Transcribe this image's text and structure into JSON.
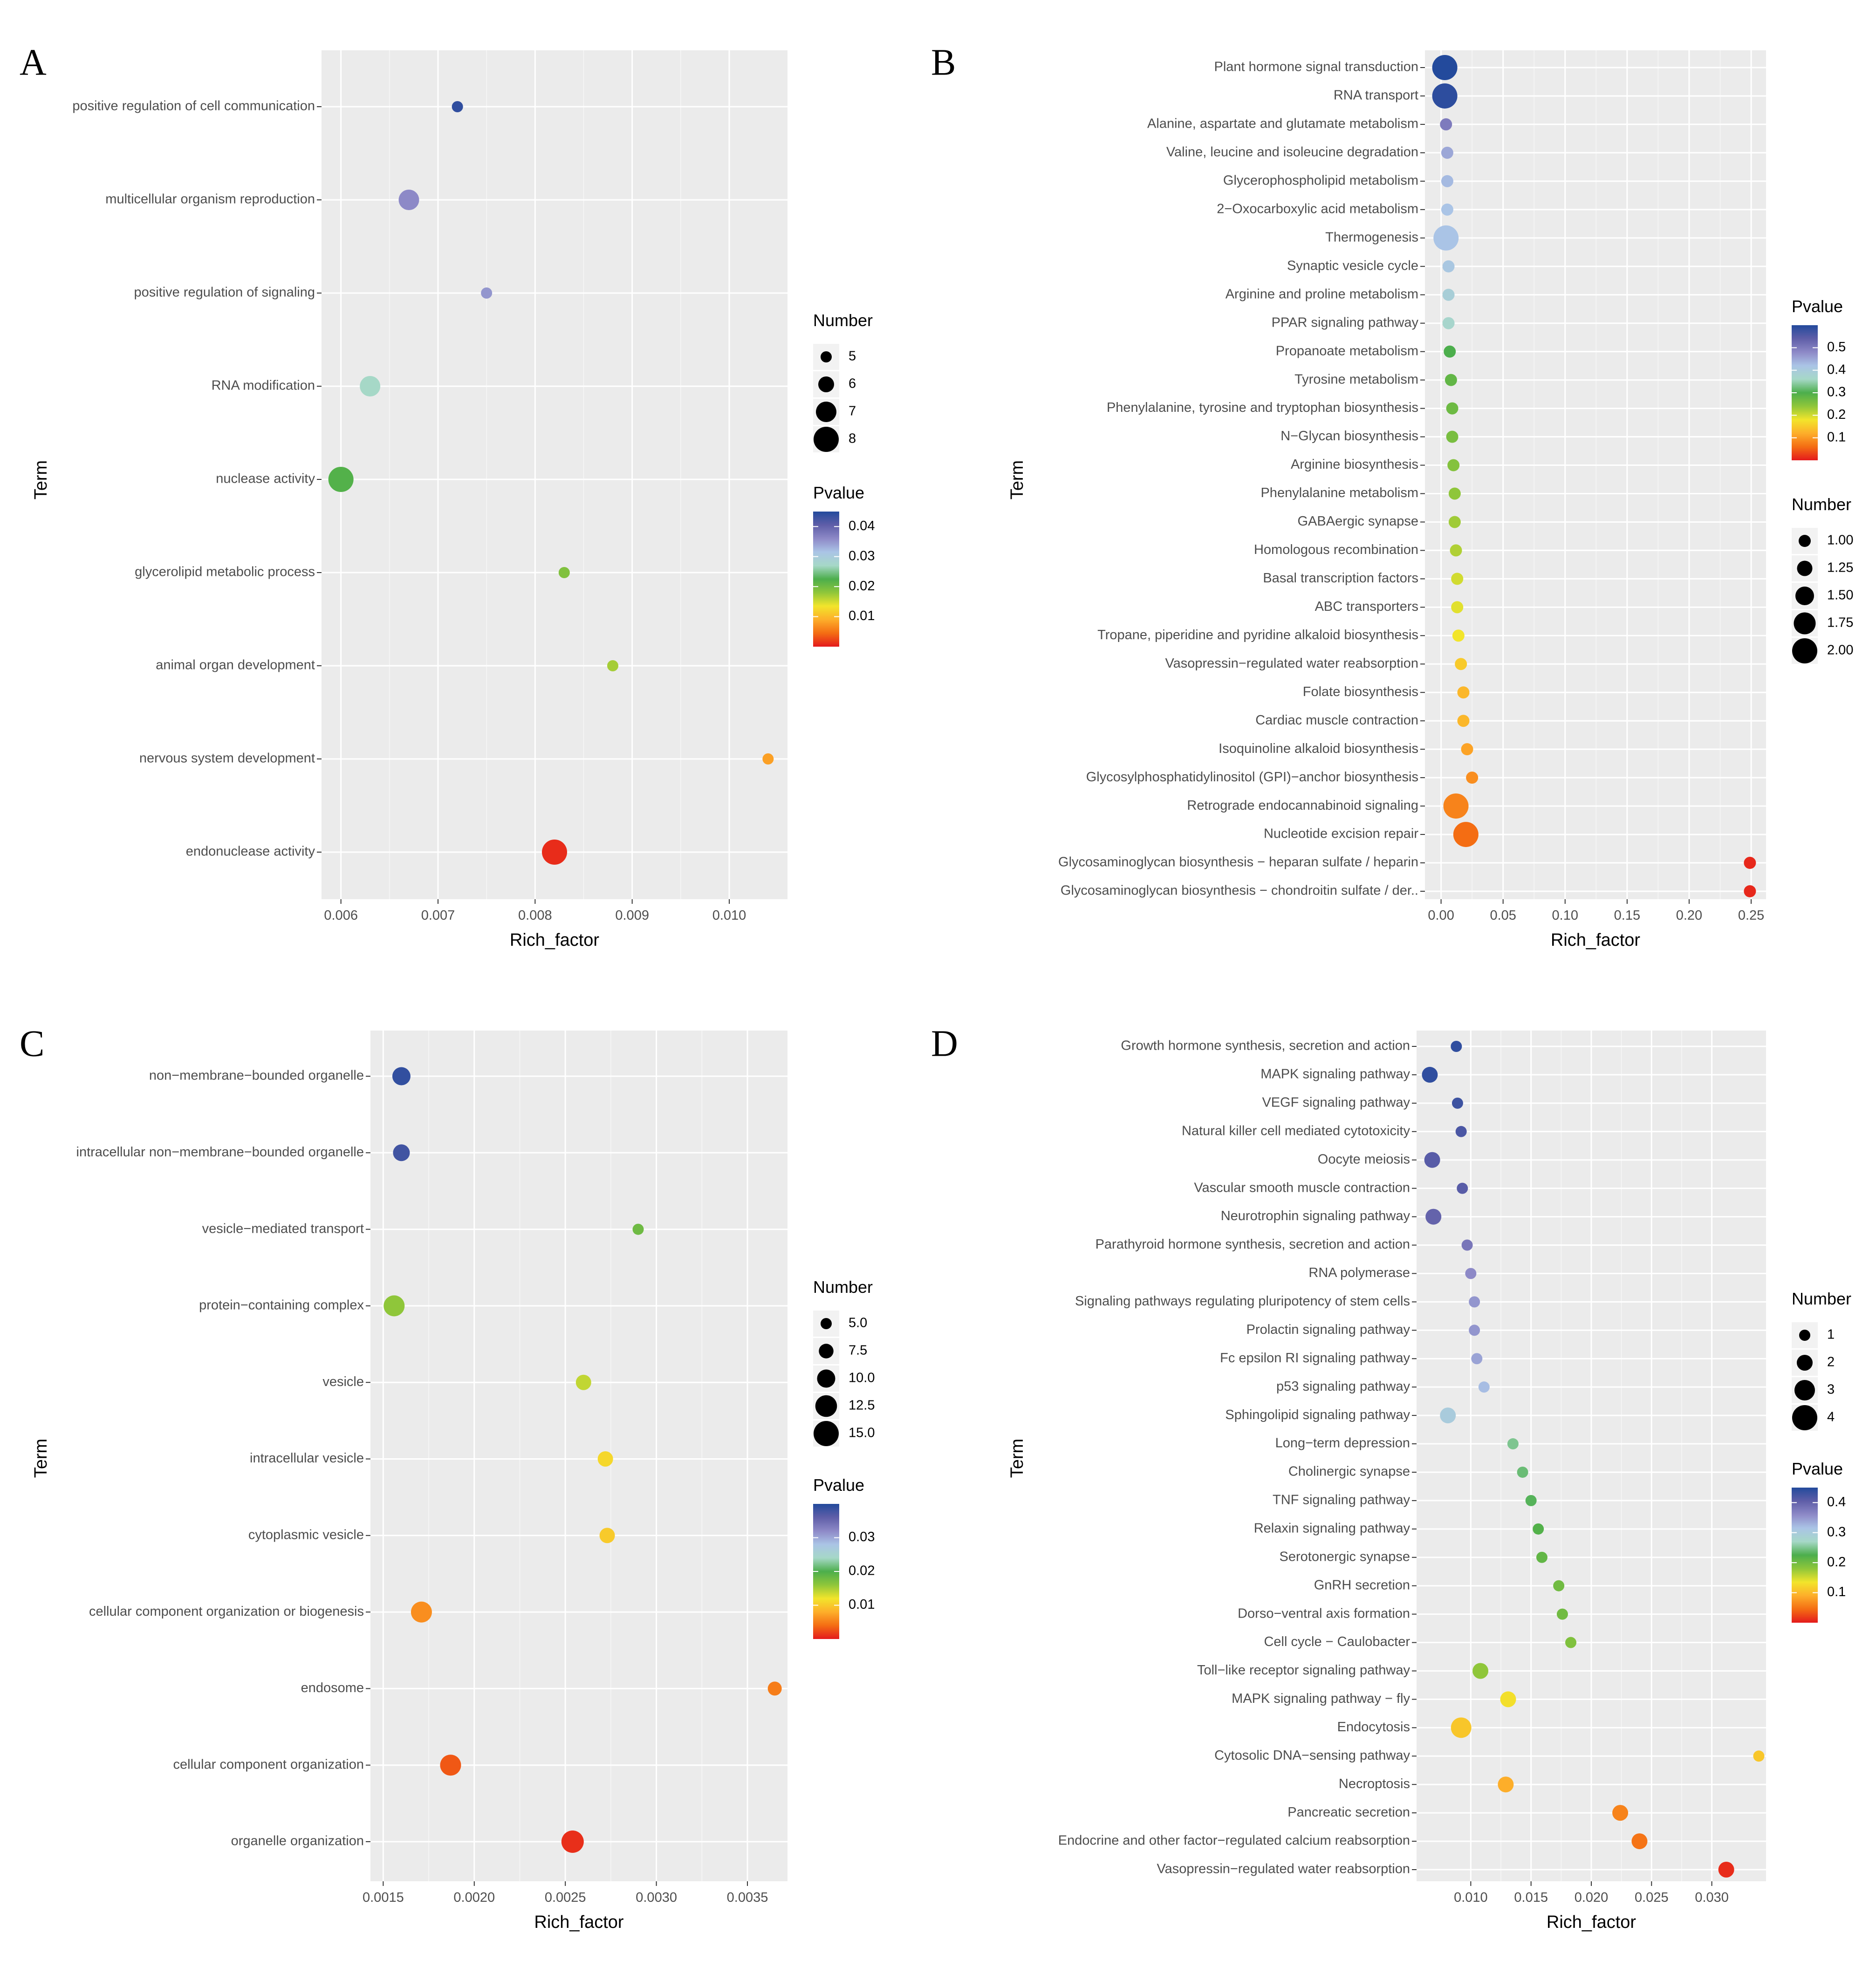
{
  "chart_data": [
    {
      "panel": "A",
      "type": "scatter",
      "xlabel": "Rich_factor",
      "ylabel": "Term",
      "xlim": [
        0.0058,
        0.0106
      ],
      "xticks": [
        0.006,
        0.007,
        0.008,
        0.009,
        0.01
      ],
      "xtick_labels": [
        "0.006",
        "0.007",
        "0.008",
        "0.009",
        "0.010"
      ],
      "terms": [
        "positive regulation of cell communication",
        "multicellular organism reproduction",
        "positive regulation of signaling",
        "RNA modification",
        "nuclease activity",
        "glycerolipid metabolic process",
        "animal organ development",
        "nervous system development",
        "endonuclease activity"
      ],
      "x": [
        0.0072,
        0.0067,
        0.0075,
        0.0063,
        0.006,
        0.0083,
        0.0088,
        0.0104,
        0.0082
      ],
      "number": [
        5,
        7,
        5,
        7,
        8,
        5,
        5,
        5,
        8
      ],
      "pvalue": [
        0.044,
        0.036,
        0.035,
        0.027,
        0.022,
        0.019,
        0.017,
        0.008,
        0.001
      ],
      "number_legend": {
        "title": "Number",
        "values": [
          5,
          6,
          7,
          8
        ],
        "labels": [
          "5",
          "6",
          "7",
          "8"
        ]
      },
      "pvalue_legend": {
        "title": "Pvalue",
        "range": [
          0,
          0.045
        ],
        "ticks": [
          0.04,
          0.03,
          0.02,
          0.01
        ],
        "labels": [
          "0.04",
          "0.03",
          "0.02",
          "0.01"
        ]
      },
      "legend_order": [
        "number",
        "pvalue"
      ],
      "grid": true
    },
    {
      "panel": "B",
      "type": "scatter",
      "xlabel": "Rich_factor",
      "ylabel": "Term",
      "xlim": [
        -0.013,
        0.262
      ],
      "xticks": [
        0,
        0.05,
        0.1,
        0.15,
        0.2,
        0.25
      ],
      "xtick_labels": [
        "0.00",
        "0.05",
        "0.10",
        "0.15",
        "0.20",
        "0.25"
      ],
      "terms": [
        "Plant hormone signal transduction",
        "RNA transport",
        "Alanine, aspartate and glutamate metabolism",
        "Valine, leucine and isoleucine degradation",
        "Glycerophospholipid metabolism",
        "2−Oxocarboxylic acid metabolism",
        "Thermogenesis",
        "Synaptic vesicle cycle",
        "Arginine and proline metabolism",
        "PPAR signaling pathway",
        "Propanoate metabolism",
        "Tyrosine metabolism",
        "Phenylalanine, tyrosine and tryptophan biosynthesis",
        "N−Glycan biosynthesis",
        "Arginine biosynthesis",
        "Phenylalanine metabolism",
        "GABAergic synapse",
        "Homologous recombination",
        "Basal transcription factors",
        "ABC transporters",
        "Tropane, piperidine and pyridine alkaloid biosynthesis",
        "Vasopressin−regulated water reabsorption",
        "Folate biosynthesis",
        "Cardiac muscle contraction",
        "Isoquinoline alkaloid biosynthesis",
        "Glycosylphosphatidylinositol (GPI)−anchor biosynthesis",
        "Retrograde endocannabinoid signaling",
        "Nucleotide excision repair",
        "Glycosaminoglycan biosynthesis − heparan sulfate / heparin",
        "Glycosaminoglycan biosynthesis − chondroitin sulfate / der.."
      ],
      "x": [
        0.003,
        0.003,
        0.004,
        0.005,
        0.005,
        0.005,
        0.004,
        0.006,
        0.006,
        0.006,
        0.007,
        0.008,
        0.009,
        0.009,
        0.01,
        0.011,
        0.011,
        0.012,
        0.013,
        0.013,
        0.014,
        0.016,
        0.018,
        0.018,
        0.021,
        0.025,
        0.012,
        0.02,
        0.249,
        0.249
      ],
      "number": [
        2,
        2,
        1,
        1,
        1,
        1,
        2,
        1,
        1,
        1,
        1,
        1,
        1,
        1,
        1,
        1,
        1,
        1,
        1,
        1,
        1,
        1,
        1,
        1,
        1,
        1,
        2,
        2,
        1,
        1
      ],
      "pvalue": [
        0.6,
        0.59,
        0.5,
        0.45,
        0.43,
        0.42,
        0.42,
        0.41,
        0.39,
        0.37,
        0.3,
        0.28,
        0.27,
        0.26,
        0.25,
        0.24,
        0.23,
        0.22,
        0.2,
        0.19,
        0.18,
        0.15,
        0.13,
        0.13,
        0.11,
        0.09,
        0.08,
        0.06,
        0.01,
        0.01
      ],
      "number_legend": {
        "title": "Number",
        "values": [
          1,
          1.25,
          1.5,
          1.75,
          2
        ],
        "labels": [
          "1.00",
          "1.25",
          "1.50",
          "1.75",
          "2.00"
        ]
      },
      "pvalue_legend": {
        "title": "Pvalue",
        "range": [
          0,
          0.6
        ],
        "ticks": [
          0.5,
          0.4,
          0.3,
          0.2,
          0.1
        ],
        "labels": [
          "0.5",
          "0.4",
          "0.3",
          "0.2",
          "0.1"
        ]
      },
      "legend_order": [
        "pvalue",
        "number"
      ],
      "grid": true
    },
    {
      "panel": "C",
      "type": "scatter",
      "xlabel": "Rich_factor",
      "ylabel": "Term",
      "xlim": [
        0.00143,
        0.00372
      ],
      "xticks": [
        0.0015,
        0.002,
        0.0025,
        0.003,
        0.0035
      ],
      "xtick_labels": [
        "0.0015",
        "0.0020",
        "0.0025",
        "0.0030",
        "0.0035"
      ],
      "terms": [
        "non−membrane−bounded organelle",
        "intracellular non−membrane−bounded organelle",
        "vesicle−mediated transport",
        "protein−containing complex",
        "vesicle",
        "intracellular vesicle",
        "cytoplasmic vesicle",
        "cellular component organization or biogenesis",
        "endosome",
        "cellular component organization",
        "organelle organization"
      ],
      "x": [
        0.0016,
        0.0016,
        0.0029,
        0.00156,
        0.0026,
        0.00272,
        0.00273,
        0.00171,
        0.00365,
        0.00187,
        0.00254
      ],
      "number": [
        10,
        9,
        5,
        12,
        8,
        8,
        8,
        12,
        7,
        12,
        13
      ],
      "pvalue": [
        0.039,
        0.038,
        0.018,
        0.016,
        0.014,
        0.011,
        0.01,
        0.006,
        0.005,
        0.003,
        0.001
      ],
      "number_legend": {
        "title": "Number",
        "values": [
          5,
          7.5,
          10,
          12.5,
          15
        ],
        "labels": [
          "5.0",
          "7.5",
          "10.0",
          "12.5",
          "15.0"
        ]
      },
      "pvalue_legend": {
        "title": "Pvalue",
        "range": [
          0,
          0.04
        ],
        "ticks": [
          0.03,
          0.02,
          0.01
        ],
        "labels": [
          "0.03",
          "0.02",
          "0.01"
        ]
      },
      "legend_order": [
        "number",
        "pvalue"
      ],
      "grid": true
    },
    {
      "panel": "D",
      "type": "scatter",
      "xlabel": "Rich_factor",
      "ylabel": "Term",
      "xlim": [
        0.0055,
        0.0345
      ],
      "xticks": [
        0.01,
        0.015,
        0.02,
        0.025,
        0.03
      ],
      "xtick_labels": [
        "0.010",
        "0.015",
        "0.020",
        "0.025",
        "0.030"
      ],
      "terms": [
        "Growth hormone synthesis, secretion and action",
        "MAPK signaling pathway",
        "VEGF signaling pathway",
        "Natural killer cell mediated cytotoxicity",
        "Oocyte meiosis",
        "Vascular smooth muscle contraction",
        "Neurotrophin signaling pathway",
        "Parathyroid hormone synthesis, secretion and action",
        "RNA polymerase",
        "Signaling pathways regulating pluripotency of stem cells",
        "Prolactin signaling pathway",
        "Fc epsilon RI signaling pathway",
        "p53 signaling pathway",
        "Sphingolipid signaling pathway",
        "Long−term depression",
        "Cholinergic synapse",
        "TNF signaling pathway",
        "Relaxin signaling pathway",
        "Serotonergic synapse",
        "GnRH secretion",
        "Dorso−ventral axis formation",
        "Cell cycle − Caulobacter",
        "Toll−like receptor signaling pathway",
        "MAPK signaling pathway − fly",
        "Endocytosis",
        "Cytosolic DNA−sensing pathway",
        "Necroptosis",
        "Pancreatic secretion",
        "Endocrine and other factor−regulated calcium reabsorption",
        "Vasopressin−regulated water reabsorption"
      ],
      "x": [
        0.0088,
        0.0066,
        0.0089,
        0.0092,
        0.0068,
        0.0093,
        0.0069,
        0.0097,
        0.01,
        0.0103,
        0.0103,
        0.0105,
        0.0111,
        0.0081,
        0.0135,
        0.0143,
        0.015,
        0.0156,
        0.0159,
        0.0173,
        0.0176,
        0.0183,
        0.0108,
        0.0131,
        0.0092,
        0.0339,
        0.0129,
        0.0224,
        0.024,
        0.0312
      ],
      "number": [
        1,
        2,
        1,
        1,
        2,
        1,
        2,
        1,
        1,
        1,
        1,
        1,
        1,
        2,
        1,
        1,
        1,
        1,
        1,
        1,
        1,
        1,
        2,
        2,
        3,
        1,
        2,
        2,
        2,
        2
      ],
      "pvalue": [
        0.44,
        0.44,
        0.43,
        0.42,
        0.41,
        0.41,
        0.4,
        0.38,
        0.36,
        0.35,
        0.35,
        0.34,
        0.32,
        0.3,
        0.25,
        0.24,
        0.23,
        0.22,
        0.21,
        0.2,
        0.2,
        0.19,
        0.18,
        0.13,
        0.11,
        0.11,
        0.09,
        0.06,
        0.05,
        0.01
      ],
      "number_legend": {
        "title": "Number",
        "values": [
          1,
          2,
          3,
          4
        ],
        "labels": [
          "1",
          "2",
          "3",
          "4"
        ]
      },
      "pvalue_legend": {
        "title": "Pvalue",
        "range": [
          0,
          0.45
        ],
        "ticks": [
          0.4,
          0.3,
          0.2,
          0.1
        ],
        "labels": [
          "0.4",
          "0.3",
          "0.2",
          "0.1"
        ]
      },
      "legend_order": [
        "number",
        "pvalue"
      ],
      "grid": true
    }
  ],
  "colors": {
    "panel_background": "#ebebeb",
    "gridline": "#ffffff",
    "axis_text": "#4d4d4d",
    "gradient_low_to_high": [
      "#e41a1c",
      "#f46d13",
      "#fdae2a",
      "#f2e52b",
      "#8fc63a",
      "#4cae4c",
      "#a6d8c7",
      "#aac4e6",
      "#8d89c7",
      "#5f5ea8",
      "#234a9c"
    ]
  }
}
